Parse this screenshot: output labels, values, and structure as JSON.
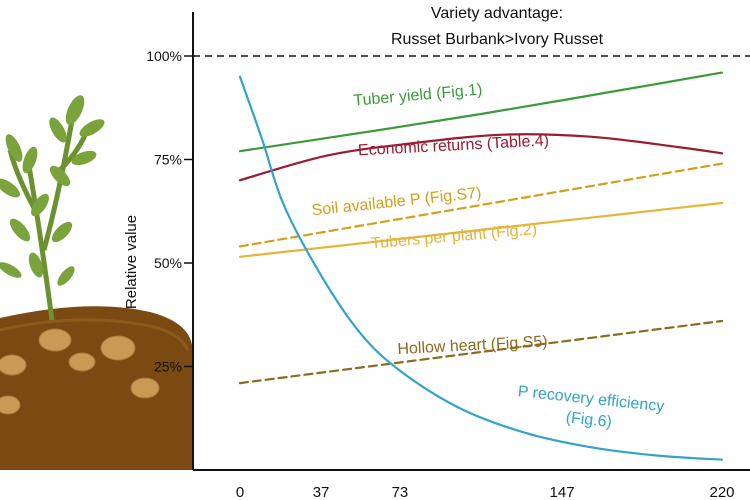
{
  "chart_data": {
    "type": "line",
    "title_line1": "Variety advantage:",
    "title_line2": "Russet Burbank>Ivory Russet",
    "ylabel": "Relative value",
    "xlabel": "",
    "x_ticks": [
      "0",
      "37",
      "73",
      "147",
      "220"
    ],
    "x_tick_values": [
      0,
      37,
      73,
      147,
      220
    ],
    "y_ticks": [
      "25%",
      "50%",
      "75%",
      "100%"
    ],
    "y_tick_values": [
      25,
      50,
      75,
      100
    ],
    "xlim": [
      0,
      220
    ],
    "ylim": [
      0,
      100
    ],
    "reference_line": {
      "y": 100,
      "style": "dashed"
    },
    "series": [
      {
        "name": "Tuber yield (Fig.1)",
        "color": "#3a9a3a",
        "dashed": false,
        "x": [
          0,
          110,
          220
        ],
        "y": [
          77,
          86,
          96
        ]
      },
      {
        "name": "Economic returns (Table.4)",
        "color": "#9b1b30",
        "dashed": false,
        "x": [
          0,
          40,
          80,
          120,
          160,
          200,
          220
        ],
        "y": [
          70,
          76,
          79,
          81,
          80.5,
          78,
          76.5
        ]
      },
      {
        "name": "Soil available P (Fig.S7)",
        "color": "#d4a01a",
        "dashed": true,
        "x": [
          0,
          110,
          220
        ],
        "y": [
          54,
          64,
          74
        ]
      },
      {
        "name": "Tubers per plant (Fig.2)",
        "color": "#e6b43a",
        "dashed": false,
        "x": [
          0,
          110,
          220
        ],
        "y": [
          51.5,
          58,
          64.5
        ]
      },
      {
        "name": "Hollow heart (Fig.S5)",
        "color": "#8c6a1e",
        "dashed": true,
        "x": [
          0,
          110,
          220
        ],
        "y": [
          21,
          28.5,
          36
        ]
      },
      {
        "name": "P recovery efficiency (Fig.6)",
        "color": "#33a3cc",
        "dashed": false,
        "x": [
          0,
          10,
          20,
          37,
          55,
          73,
          100,
          130,
          160,
          190,
          220
        ],
        "y": [
          95,
          80,
          64,
          47,
          33,
          24,
          15,
          9,
          5.5,
          3.5,
          2.5
        ]
      }
    ],
    "labels": [
      {
        "series": 0,
        "lines": [
          "Tuber yield (Fig.1)"
        ],
        "x": 52,
        "y": 88,
        "rotate": -5,
        "anchor": "start"
      },
      {
        "series": 1,
        "lines": [
          "Economic returns (Table.4)"
        ],
        "x": 54,
        "y": 76,
        "rotate": -3,
        "anchor": "start"
      },
      {
        "series": 2,
        "lines": [
          "Soil available P (Fig.S7)"
        ],
        "x": 33,
        "y": 61.5,
        "rotate": -6,
        "anchor": "start"
      },
      {
        "series": 3,
        "lines": [
          "Tubers per plant (Fig.2)"
        ],
        "x": 60,
        "y": 53.5,
        "rotate": -5,
        "anchor": "start"
      },
      {
        "series": 4,
        "lines": [
          "Hollow heart (Fig.S5)"
        ],
        "x": 72,
        "y": 28,
        "rotate": -3,
        "anchor": "start"
      },
      {
        "series": 5,
        "lines": [
          "P recovery efficiency",
          "(Fig.6)"
        ],
        "x": 160,
        "y": 16,
        "rotate": 6,
        "anchor": "middle"
      }
    ]
  },
  "illustration": {
    "plant_leaf_color": "#7aa33c",
    "plant_stem_color": "#6b9130",
    "soil_color": "#7a4a12",
    "potato_color": "#c99a55"
  }
}
